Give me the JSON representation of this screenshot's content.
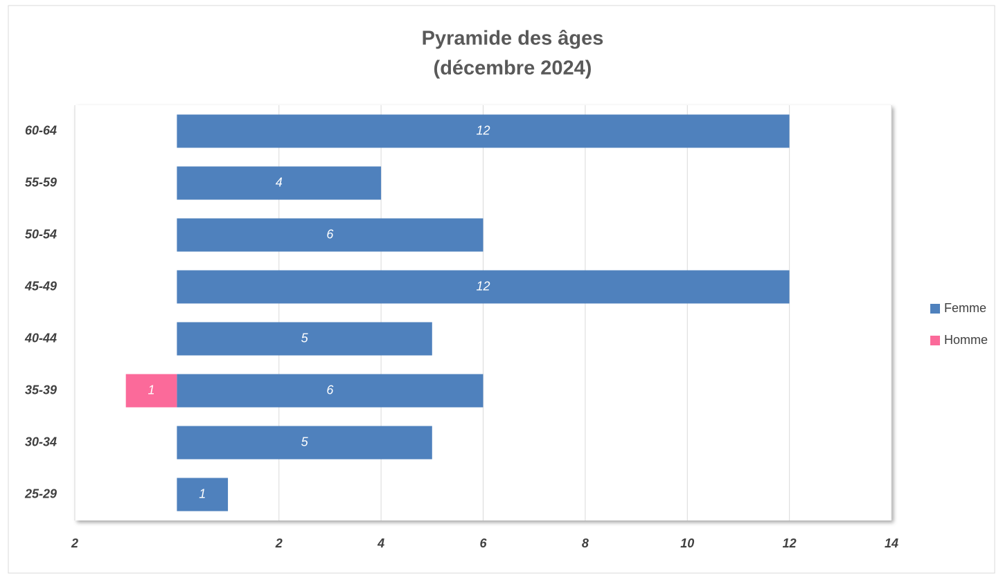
{
  "chart_data": {
    "type": "bar",
    "orientation": "horizontal",
    "title": [
      "Pyramide des âges",
      "(décembre 2024)"
    ],
    "categories": [
      "60-64",
      "55-59",
      "50-54",
      "45-49",
      "40-44",
      "35-39",
      "30-34",
      "25-29"
    ],
    "series": [
      {
        "name": "Femme",
        "color": "#4f81bd",
        "values": [
          12,
          4,
          6,
          12,
          5,
          6,
          5,
          1
        ]
      },
      {
        "name": "Homme",
        "color": "#fb6a9a",
        "values": [
          null,
          null,
          null,
          null,
          null,
          -1,
          null,
          null
        ],
        "value_labels": [
          null,
          null,
          null,
          null,
          null,
          "1",
          null,
          null
        ]
      }
    ],
    "xlim": [
      -2,
      14
    ],
    "xticks": [
      {
        "value": -2,
        "label": "2"
      },
      2,
      4,
      6,
      8,
      10,
      12,
      14
    ],
    "grid": true,
    "legend": "right"
  }
}
